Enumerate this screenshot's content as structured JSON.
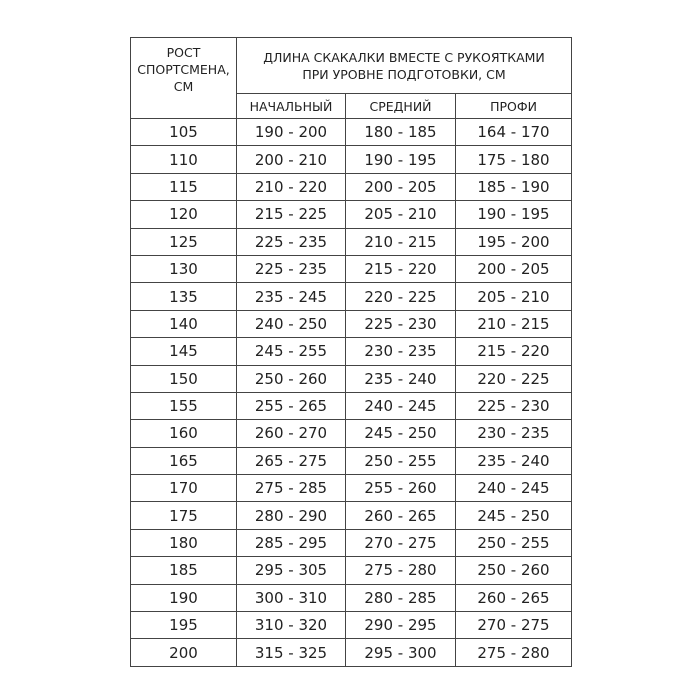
{
  "header": {
    "height_col": "РОСТ СПОРТСМЕНА, СМ",
    "length_group": "ДЛИНА СКАКАЛКИ ВМЕСТЕ С РУКОЯТКАМИ ПРИ УРОВНЕ ПОДГОТОВКИ, СМ",
    "levels": [
      "НАЧАЛЬНЫЙ",
      "СРЕДНИЙ",
      "ПРОФИ"
    ]
  },
  "rows": [
    [
      "105",
      "190 - 200",
      "180 - 185",
      "164 - 170"
    ],
    [
      "110",
      "200 - 210",
      "190 - 195",
      "175 - 180"
    ],
    [
      "115",
      "210 - 220",
      "200 - 205",
      "185 - 190"
    ],
    [
      "120",
      "215 - 225",
      "205 - 210",
      "190 - 195"
    ],
    [
      "125",
      "225 - 235",
      "210 - 215",
      "195 - 200"
    ],
    [
      "130",
      "225 - 235",
      "215 - 220",
      "200 - 205"
    ],
    [
      "135",
      "235 - 245",
      "220 - 225",
      "205 - 210"
    ],
    [
      "140",
      "240 - 250",
      "225 - 230",
      "210 - 215"
    ],
    [
      "145",
      "245 - 255",
      "230 - 235",
      "215 - 220"
    ],
    [
      "150",
      "250 - 260",
      "235 - 240",
      "220 - 225"
    ],
    [
      "155",
      "255 - 265",
      "240 - 245",
      "225 - 230"
    ],
    [
      "160",
      "260 - 270",
      "245 - 250",
      "230 - 235"
    ],
    [
      "165",
      "265 - 275",
      "250 - 255",
      "235 - 240"
    ],
    [
      "170",
      "275 - 285",
      "255 - 260",
      "240 - 245"
    ],
    [
      "175",
      "280 - 290",
      "260 - 265",
      "245 - 250"
    ],
    [
      "180",
      "285 - 295",
      "270 - 275",
      "250 - 255"
    ],
    [
      "185",
      "295 - 305",
      "275 - 280",
      "250 - 260"
    ],
    [
      "190",
      "300 - 310",
      "280 - 285",
      "260 - 265"
    ],
    [
      "195",
      "310 - 320",
      "290 - 295",
      "270 - 275"
    ],
    [
      "200",
      "315 - 325",
      "295 - 300",
      "275 - 280"
    ]
  ]
}
